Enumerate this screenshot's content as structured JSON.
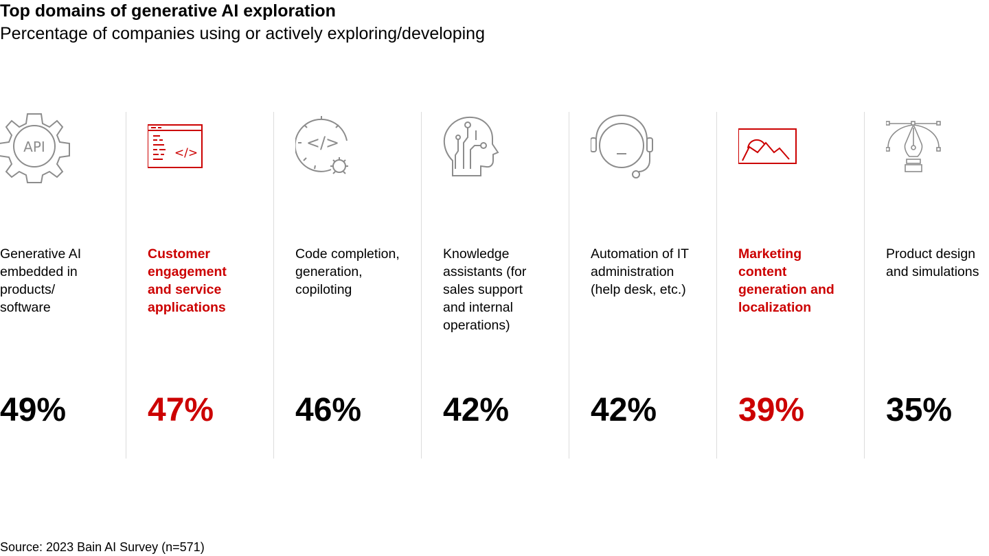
{
  "title": "Top domains of generative AI exploration",
  "subtitle": "Percentage of companies using or actively exploring/developing",
  "source": "Source: 2023 Bain AI Survey (n=571)",
  "colors": {
    "accent": "#cc0000",
    "text": "#000000",
    "icon_gray": "#8c8c8c",
    "divider": "#dcdcdc"
  },
  "icons": {
    "api": "API",
    "code": "</>"
  },
  "chart_data": {
    "type": "table",
    "title": "Top domains of generative AI exploration",
    "subtitle": "Percentage of companies using or actively exploring/developing",
    "unit": "%",
    "categories": [
      "Generative AI embedded in products/ software",
      "Customer engagement and service applications",
      "Code completion, generation, copiloting",
      "Knowledge assistants (for sales support and internal operations)",
      "Automation of IT administration (help desk, etc.)",
      "Marketing content generation and localization",
      "Product design and simulations"
    ],
    "values": [
      49,
      47,
      46,
      42,
      42,
      39,
      35
    ],
    "items": [
      {
        "label": "Generative AI\nembedded in\nproducts/\nsoftware",
        "value_text": "49%",
        "value": 49,
        "highlight": false,
        "icon": "api-gear-icon"
      },
      {
        "label": "Customer\nengagement\nand service\napplications",
        "value_text": "47%",
        "value": 47,
        "highlight": true,
        "icon": "code-window-icon"
      },
      {
        "label": "Code completion,\ngeneration,\ncopiloting",
        "value_text": "46%",
        "value": 46,
        "highlight": false,
        "icon": "code-bug-icon"
      },
      {
        "label": "Knowledge\nassistants (for\nsales support\nand internal\noperations)",
        "value_text": "42%",
        "value": 42,
        "highlight": false,
        "icon": "ai-head-icon"
      },
      {
        "label": "Automation of IT\nadministration\n(help desk, etc.)",
        "value_text": "42%",
        "value": 42,
        "highlight": false,
        "icon": "headset-icon"
      },
      {
        "label": "Marketing\ncontent\ngeneration and\nlocalization",
        "value_text": "39%",
        "value": 39,
        "highlight": true,
        "icon": "image-icon"
      },
      {
        "label": "Product design\nand simulations",
        "value_text": "35%",
        "value": 35,
        "highlight": false,
        "icon": "pen-tool-icon"
      }
    ]
  }
}
